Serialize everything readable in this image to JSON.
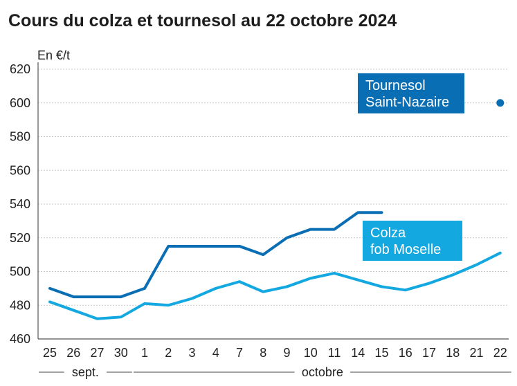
{
  "title": "Cours du colza et tournesol au 22 octobre 2024",
  "chart_data": {
    "type": "line",
    "title": "Cours du colza et tournesol au 22 octobre 2024",
    "unit_label": "En €/t",
    "ylim": [
      460,
      620
    ],
    "yticks": [
      460,
      480,
      500,
      520,
      540,
      560,
      580,
      600,
      620
    ],
    "grid": true,
    "categories": [
      "25",
      "26",
      "27",
      "30",
      "1",
      "2",
      "3",
      "4",
      "7",
      "8",
      "9",
      "10",
      "11",
      "14",
      "15",
      "16",
      "17",
      "18",
      "21",
      "22"
    ],
    "months": [
      {
        "label": "sept.",
        "from": 0,
        "to": 3
      },
      {
        "label": "octobre",
        "from": 4,
        "to": 19
      }
    ],
    "series": [
      {
        "name_lines": [
          "Tournesol",
          "Saint-Nazaire"
        ],
        "color": "#0a6eb4",
        "values": [
          490,
          485,
          485,
          485,
          490,
          515,
          515,
          515,
          515,
          510,
          520,
          525,
          525,
          535,
          535,
          null,
          null,
          null,
          null,
          600
        ]
      },
      {
        "name_lines": [
          "Colza",
          "fob Moselle"
        ],
        "color": "#14a8e0",
        "values": [
          482,
          477,
          472,
          473,
          481,
          480,
          484,
          490,
          494,
          488,
          491,
          496,
          499,
          495,
          491,
          489,
          493,
          498,
          504,
          511
        ]
      }
    ]
  }
}
